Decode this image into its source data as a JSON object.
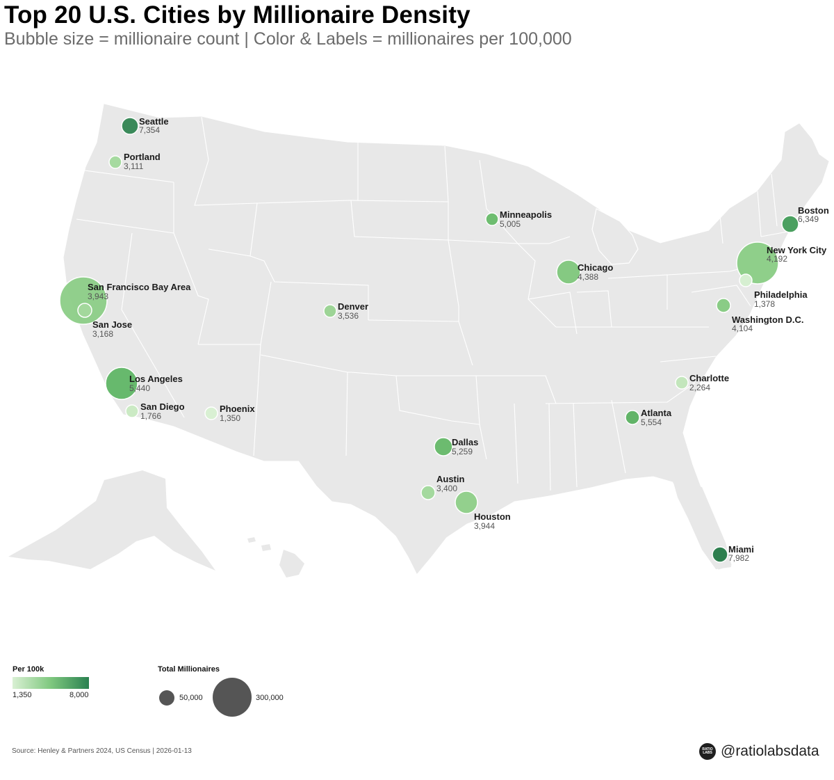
{
  "header": {
    "title": "Top 20 U.S. Cities by Millionaire Density",
    "subtitle": "Bubble size = millionaire count | Color & Labels = millionaires per 100,000"
  },
  "colors": {
    "land": "#e8e8e8",
    "border": "#ffffff",
    "scale_low": "#d9f0d3",
    "scale_mid": "#7fc87f",
    "scale_high": "#2a8150",
    "legend_bubble": "#555555"
  },
  "cities": [
    {
      "name": "Seattle",
      "per100k": "7,354"
    },
    {
      "name": "Portland",
      "per100k": "3,111"
    },
    {
      "name": "San Francisco Bay Area",
      "per100k": "3,943"
    },
    {
      "name": "San Jose",
      "per100k": "3,168"
    },
    {
      "name": "Los Angeles",
      "per100k": "5,440"
    },
    {
      "name": "San Diego",
      "per100k": "1,766"
    },
    {
      "name": "Phoenix",
      "per100k": "1,350"
    },
    {
      "name": "Denver",
      "per100k": "3,536"
    },
    {
      "name": "Minneapolis",
      "per100k": "5,005"
    },
    {
      "name": "Chicago",
      "per100k": "4,388"
    },
    {
      "name": "Dallas",
      "per100k": "5,259"
    },
    {
      "name": "Austin",
      "per100k": "3,400"
    },
    {
      "name": "Houston",
      "per100k": "3,944"
    },
    {
      "name": "Atlanta",
      "per100k": "5,554"
    },
    {
      "name": "Charlotte",
      "per100k": "2,264"
    },
    {
      "name": "Washington D.C.",
      "per100k": "4,104"
    },
    {
      "name": "Philadelphia",
      "per100k": "1,378"
    },
    {
      "name": "New York City",
      "per100k": "4,192"
    },
    {
      "name": "Boston",
      "per100k": "6,349"
    },
    {
      "name": "Miami",
      "per100k": "7,982"
    }
  ],
  "legend": {
    "color_title": "Per 100k",
    "color_min": "1,350",
    "color_max": "8,000",
    "size_title": "Total Millionaires",
    "size_small": "50,000",
    "size_large": "300,000"
  },
  "footer": {
    "source": "Source: Henley & Partners 2024, US Census | 2026-01-13",
    "handle": "@ratiolabsdata",
    "logo_text": "RATIO LABS"
  }
}
